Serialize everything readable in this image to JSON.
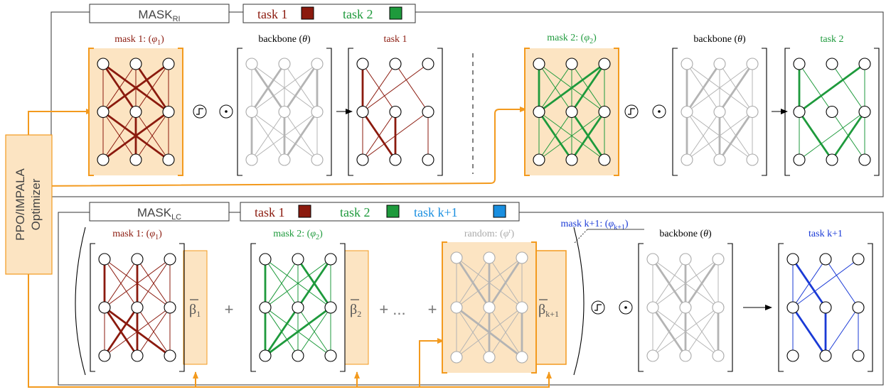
{
  "optimizer": {
    "line1": "PPO/IMPALA",
    "line2": "Optimizer"
  },
  "panel_ri": {
    "title_base": "MASK",
    "title_sub": "RI",
    "legend": [
      {
        "label": "task 1",
        "color": "#8b1a0e"
      },
      {
        "label": "task 2",
        "color": "#1e9a3c"
      }
    ],
    "labels": {
      "mask1_prefix": "mask 1: (",
      "mask1_phi": "φ",
      "mask1_sub": "1",
      "mask1_suffix": ")",
      "backbone": "backbone (",
      "theta": "θ",
      "close_paren": ")",
      "task1": "task 1",
      "mask2_prefix": "mask 2: (",
      "mask2_phi": "φ",
      "mask2_sub": "2",
      "mask2_suffix": ")",
      "task2": "task 2"
    }
  },
  "panel_lc": {
    "title_base": "MASK",
    "title_sub": "LC",
    "legend": [
      {
        "label": "task 1",
        "color": "#8b1a0e"
      },
      {
        "label": "task 2",
        "color": "#1e9a3c"
      },
      {
        "label": "task k+1",
        "color": "#1a8fe0"
      }
    ],
    "labels": {
      "mask1_prefix": "mask 1: (",
      "mask1_phi": "φ",
      "mask1_sub": "1",
      "mask1_suffix": ")",
      "mask2_prefix": "mask 2: (",
      "mask2_phi": "φ",
      "mask2_sub": "2",
      "mask2_suffix": ")",
      "random_prefix": "random: (",
      "random_phi": "φ",
      "random_sup": "r",
      "random_suffix": ")",
      "maskk_prefix": "mask k+1: (",
      "maskk_phi": "φ",
      "maskk_sub": "k+1",
      "maskk_suffix": ")",
      "backbone": "backbone (",
      "theta": "θ",
      "close_paren": ")",
      "taskk": "task k+1",
      "beta1_sub": "1",
      "beta2_sub": "2",
      "betak_sub": "k+1",
      "beta": "β",
      "plus": "+",
      "ellipsis": "...",
      "plus_ellipsis": "+ ..."
    }
  },
  "colors": {
    "task1": "#8b1a0e",
    "task2": "#1e9a3c",
    "taskk": "#1a3ad6",
    "taskk_legend": "#1a8fe0",
    "orange": "#f39a1e",
    "mask_fill": "#fce4c2",
    "gray": "#b4b4b4"
  },
  "symbols": {
    "step": "step-function-icon",
    "dot": "odot-icon"
  }
}
